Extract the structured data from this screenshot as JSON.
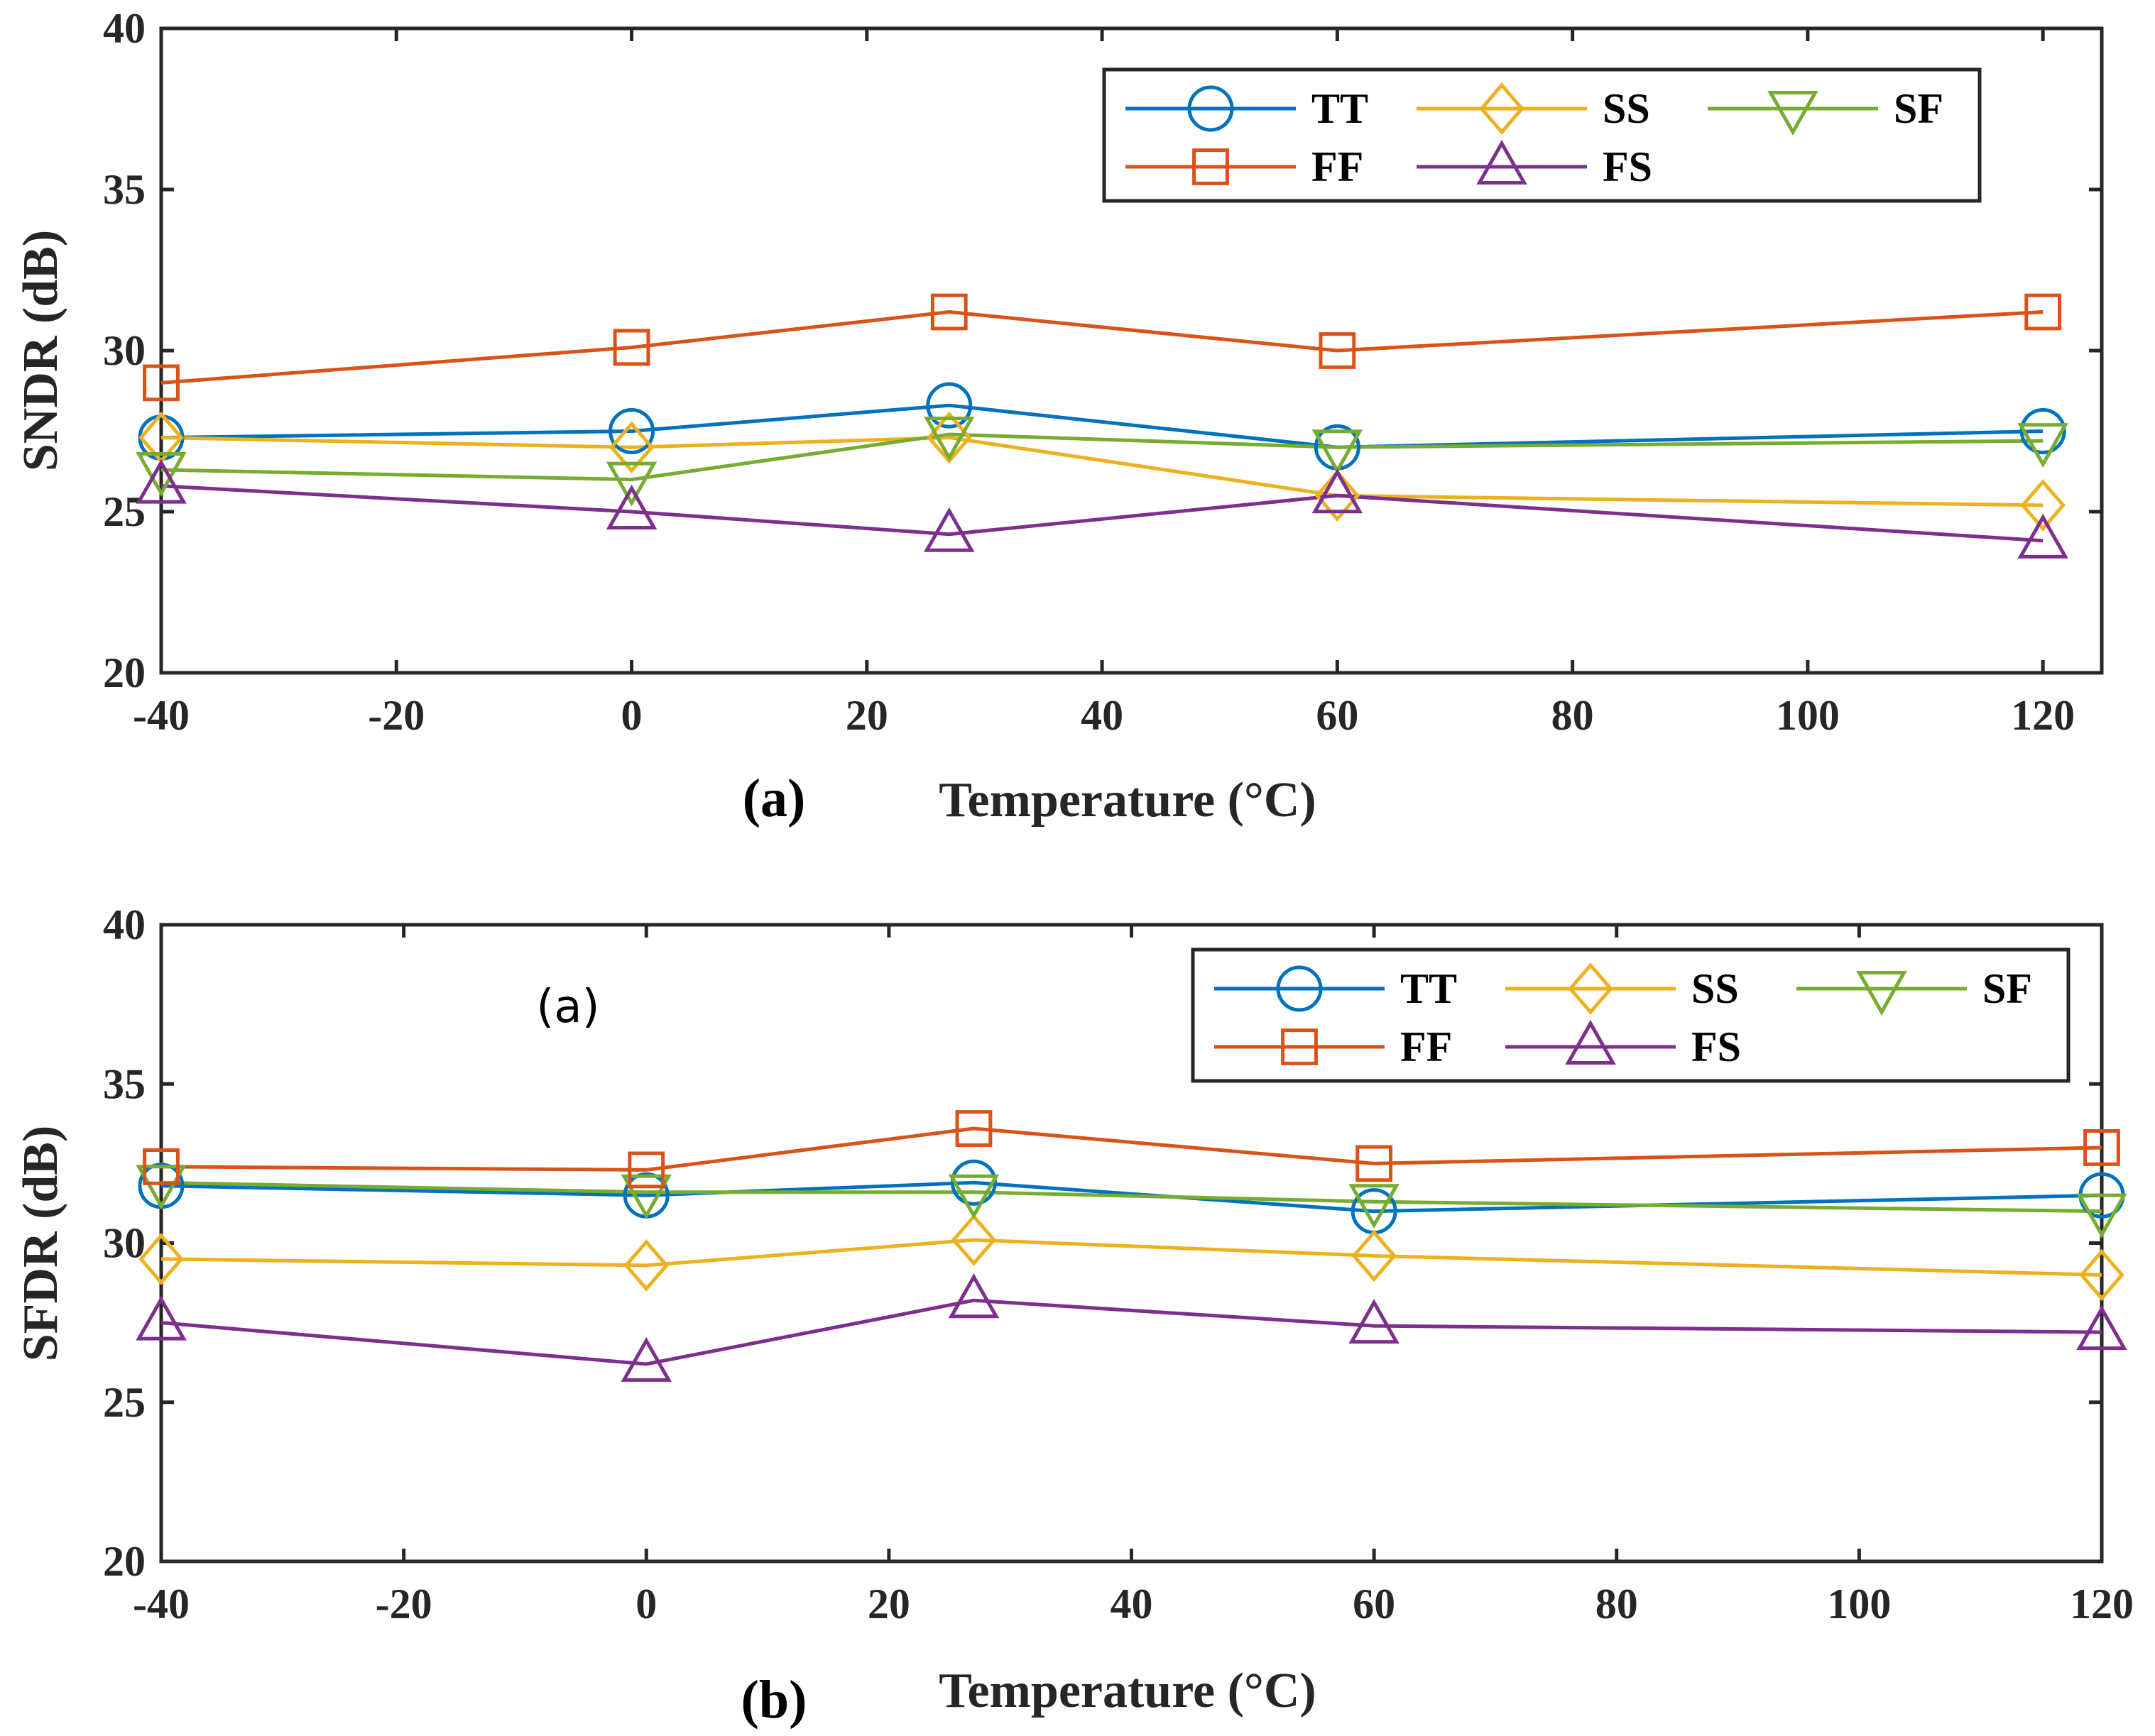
{
  "chart_data": [
    {
      "type": "line",
      "panel_label": "(a)",
      "xlabel": "Temperature (°C)",
      "ylabel": "SNDR (dB)",
      "xlim": [
        -40,
        125
      ],
      "ylim": [
        20,
        40
      ],
      "xticks": [
        -40,
        -20,
        0,
        20,
        40,
        60,
        80,
        100,
        120
      ],
      "yticks": [
        20,
        25,
        30,
        35,
        40
      ],
      "grid": false,
      "legend_position": "top-right",
      "annotations": [],
      "x": [
        -40,
        0,
        27,
        60,
        120
      ],
      "series": [
        {
          "name": "TT",
          "color": "#0072BD",
          "marker": "circle",
          "values": [
            27.3,
            27.5,
            28.3,
            27.0,
            27.5
          ]
        },
        {
          "name": "SS",
          "color": "#EDB120",
          "marker": "diamond",
          "values": [
            27.3,
            27.0,
            27.3,
            25.5,
            25.2
          ]
        },
        {
          "name": "SF",
          "color": "#77AC30",
          "marker": "triangle-down",
          "values": [
            26.3,
            26.0,
            27.4,
            27.0,
            27.2
          ]
        },
        {
          "name": "FF",
          "color": "#D95319",
          "marker": "square",
          "values": [
            29.0,
            30.1,
            31.2,
            30.0,
            31.2
          ]
        },
        {
          "name": "FS",
          "color": "#7E2F8E",
          "marker": "triangle-up",
          "values": [
            25.8,
            25.0,
            24.3,
            25.5,
            24.1
          ]
        }
      ]
    },
    {
      "type": "line",
      "panel_label": "(b)",
      "xlabel": "Temperature (°C)",
      "ylabel": "SFDR (dB)",
      "xlim": [
        -40,
        120
      ],
      "ylim": [
        20,
        40
      ],
      "xticks": [
        -40,
        -20,
        0,
        20,
        40,
        60,
        80,
        100,
        120
      ],
      "yticks": [
        20,
        25,
        30,
        35,
        40
      ],
      "grid": false,
      "legend_position": "top-right",
      "annotations": [
        "(a)"
      ],
      "x": [
        -40,
        0,
        27,
        60,
        120
      ],
      "series": [
        {
          "name": "TT",
          "color": "#0072BD",
          "marker": "circle",
          "values": [
            31.8,
            31.5,
            31.9,
            31.0,
            31.5
          ]
        },
        {
          "name": "SS",
          "color": "#EDB120",
          "marker": "diamond",
          "values": [
            29.5,
            29.3,
            30.1,
            29.6,
            29.0
          ]
        },
        {
          "name": "SF",
          "color": "#77AC30",
          "marker": "triangle-down",
          "values": [
            31.9,
            31.6,
            31.6,
            31.3,
            31.0
          ]
        },
        {
          "name": "FF",
          "color": "#D95319",
          "marker": "square",
          "values": [
            32.4,
            32.3,
            33.6,
            32.5,
            33.0
          ]
        },
        {
          "name": "FS",
          "color": "#7E2F8E",
          "marker": "triangle-up",
          "values": [
            27.5,
            26.2,
            28.2,
            27.4,
            27.2
          ]
        }
      ]
    }
  ]
}
